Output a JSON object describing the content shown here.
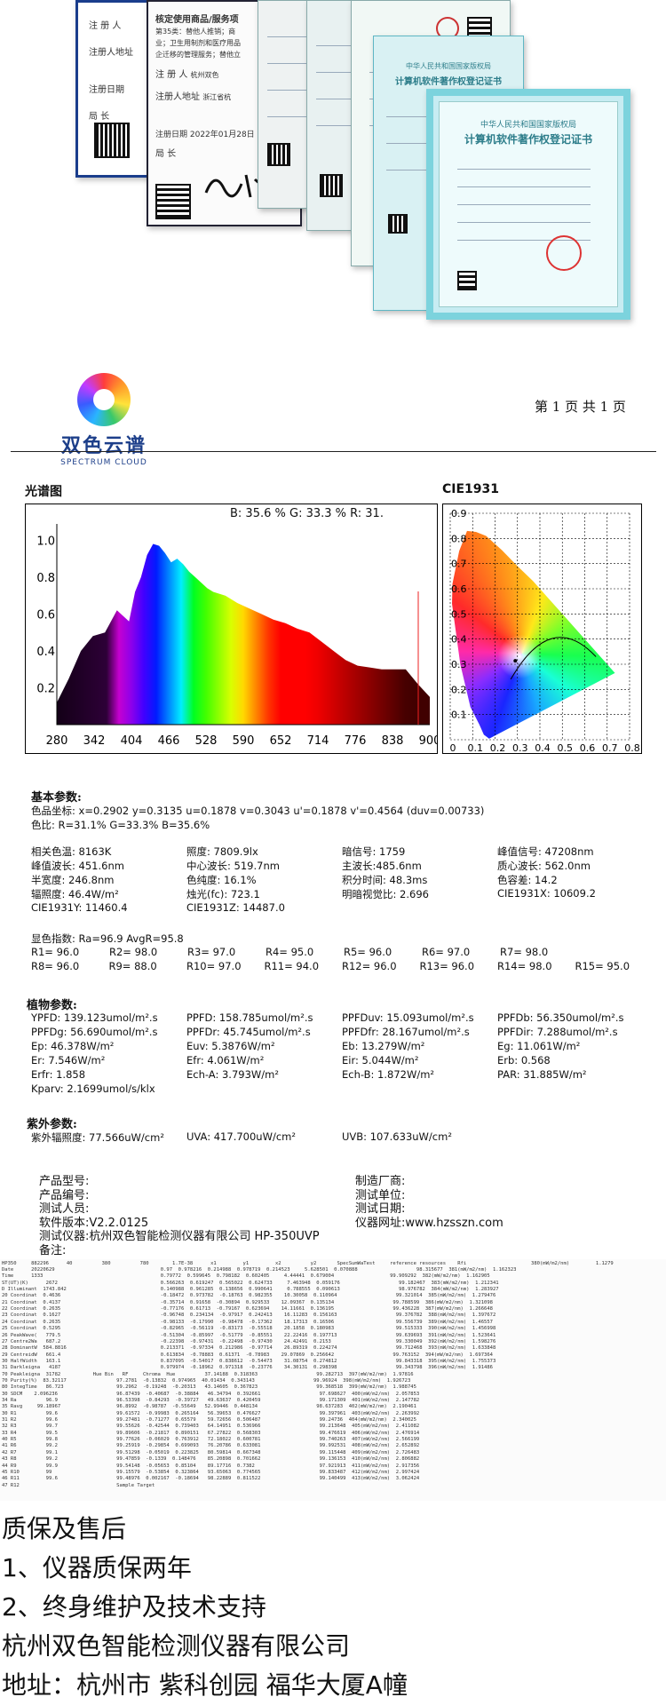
{
  "certificates": {
    "c1_lines": [
      "注 册 人",
      "注册人地址",
      "注册日期",
      "局 长"
    ],
    "c2_lines": [
      "核定使用商品/服务项",
      "第35类：替他人推销；商",
      "业；卫生用制剂和医疗用品",
      "企迁移的管理服务；替他立",
      "注 册 人",
      "注册人地址",
      "注册日期 2022年01月28日",
      "局 长"
    ],
    "c2_addr": "杭州双色",
    "c2_addr2": "浙江省杭",
    "c6_title1": "中华人民共和国国家版权局",
    "c6_title2": "计算机软件著作权登记证书",
    "c7_title1": "中华人民共和国国家版权局",
    "c7_title2": "计算机软件著作权登记证书"
  },
  "report": {
    "brand_name": "双色云谱",
    "brand_en": "SPECTRUM CLOUD",
    "page_label": "第 1 页 共 1 页",
    "spectrum_title": "光谱图",
    "spectrum_ratio": "B: 35.6 %  G: 33.3 %  R: 31.",
    "cie_title": "CIE1931",
    "basic_head": "基本参数:",
    "basic_line1": "色品坐标: x=0.2902  y=0.3135  u=0.1878  v=0.3043  u'=0.1878  v'=0.4564  (duv=0.00733)",
    "basic_line2": "色比: R=31.1%   G=33.3%   B=35.6%",
    "params": [
      [
        "相关色温: 8163K",
        "照度: 7809.9lx",
        "暗信号: 1759",
        "峰值信号: 47208nm"
      ],
      [
        "峰值波长: 451.6nm",
        "中心波长: 519.7nm",
        "主波长:485.6nm",
        "质心波长: 562.0nm"
      ],
      [
        "半宽度: 246.8nm",
        "色纯度: 16.1%",
        "积分时间: 48.3ms",
        "色容差: 14.2"
      ],
      [
        "辐照度: 46.4W/m²",
        "烛光(fc): 723.1",
        "明暗视觉比: 2.696",
        "CIE1931X: 10609.2"
      ],
      [
        "CIE1931Y: 11460.4",
        "CIE1931Z: 14487.0",
        "",
        ""
      ]
    ],
    "ri_line": "显色指数: Ra=96.9     AvgR=95.8",
    "ri_rows": [
      [
        "R1= 96.0",
        "R2= 98.0",
        "R3= 97.0",
        "R4= 95.0",
        "R5= 96.0",
        "R6= 97.0",
        "R7= 98.0"
      ],
      [
        "R8= 96.0",
        "R9= 88.0",
        "R10= 97.0",
        "R11= 94.0",
        "R12= 96.0",
        "R13= 96.0",
        "R14= 98.0",
        "R15= 95.0"
      ]
    ],
    "plant_head": "植物参数:",
    "plant_rows": [
      [
        "YPFD: 139.123umol/m².s",
        "PPFD: 158.785umol/m².s",
        "PPFDuv: 15.093umol/m².s",
        "PPFDb: 56.350umol/m².s"
      ],
      [
        "PPFDg: 56.690umol/m².s",
        "PPFDr: 45.745umol/m².s",
        "PPFDfr: 28.167umol/m².s",
        "PPFDir: 7.288umol/m².s"
      ],
      [
        "Ep: 46.378W/m²",
        "Euv: 5.3876W/m²",
        "Eb: 13.279W/m²",
        "Eg: 11.061W/m²"
      ],
      [
        "Er: 7.546W/m²",
        "Efr: 4.061W/m²",
        "Eir: 5.044W/m²",
        "Erb: 0.568"
      ],
      [
        "Erfr: 1.858",
        "Ech-A: 3.793W/m²",
        "Ech-B: 1.872W/m²",
        "PAR: 31.885W/m²"
      ],
      [
        "Kparv: 2.1699umol/s/klx",
        "",
        "",
        ""
      ]
    ],
    "uv_head": "紫外参数:",
    "uv_vals": [
      "紫外辐照度: 77.566uW/cm²",
      "UVA: 417.700uW/cm²",
      "UVB: 107.633uW/cm²"
    ],
    "info_left": [
      "产品型号:",
      "产品编号:",
      "测试人员:",
      "软件版本:V2.2.0125",
      "测试仪器:杭州双色智能检测仪器有限公司 HP-350UVP",
      "备注:"
    ],
    "info_right": [
      "制造厂商:",
      "测试单位:",
      "测试日期:",
      "仪器网址:www.hzsszn.com"
    ]
  },
  "chart_data": [
    {
      "type": "area",
      "title": "光谱图",
      "x_ticks": [
        280,
        342,
        404,
        466,
        528,
        590,
        652,
        714,
        776,
        838,
        900
      ],
      "y_ticks": [
        0.2,
        0.4,
        0.6,
        0.8,
        1.0
      ],
      "y_tick_labels": [
        "0.2",
        "0.4",
        "0.6",
        "0.8",
        "1.0"
      ],
      "xlim": [
        280,
        900
      ],
      "ylim": [
        0,
        1.05
      ],
      "x": [
        280,
        300,
        320,
        340,
        360,
        380,
        400,
        410,
        420,
        430,
        440,
        450,
        460,
        470,
        480,
        490,
        500,
        510,
        520,
        530,
        540,
        550,
        560,
        580,
        600,
        620,
        640,
        660,
        680,
        700,
        720,
        740,
        760,
        780,
        800,
        820,
        840,
        860,
        880,
        900
      ],
      "values": [
        0.12,
        0.25,
        0.4,
        0.48,
        0.5,
        0.62,
        0.56,
        0.72,
        0.8,
        0.92,
        0.98,
        0.97,
        0.93,
        0.88,
        0.9,
        0.87,
        0.83,
        0.8,
        0.77,
        0.74,
        0.72,
        0.71,
        0.7,
        0.66,
        0.63,
        0.6,
        0.57,
        0.55,
        0.52,
        0.5,
        0.45,
        0.4,
        0.35,
        0.32,
        0.31,
        0.3,
        0.3,
        0.3,
        0.22,
        0.15
      ],
      "grid": false
    },
    {
      "type": "scatter",
      "title": "CIE1931",
      "x_tick_labels": [
        "0",
        "0.1",
        "0.2",
        "0.3",
        "0.4",
        "0.5",
        "0.6",
        "0.7",
        "0.8"
      ],
      "y_tick_labels": [
        "0.1",
        "0.2",
        "0.3",
        "0.4",
        "0.5",
        "0.6",
        "0.7",
        "0.8",
        "0.9"
      ],
      "xlim": [
        0,
        0.8
      ],
      "ylim": [
        0,
        0.9
      ],
      "point": {
        "x": 0.2902,
        "y": 0.3135
      },
      "grid": true
    }
  ],
  "datalog": {
    "header": "HP350     882296      40          380          780        1.7E-38      x1         y1         x2          y2       SpecSumWaTest     reference resources    Rfi                      380(mW/m2/nm)         1.1279",
    "rows": [
      "Date      20220629                                    0.97  0.978216  0.214988  0.978719  0.214523     5.628501  0.070888                    98.315677  381(mW/m2/nm)  1.162323",
      "Time      1333                                        0.79772  0.599645  0.798182  0.602405     4.44441  0.679004                   99.909292  382(mW/m2/nm)  1.162905",
      "ST(UT)(K)      2672                                   0.566263  0.619247  0.565022  0.624733     7.463948  0.059176                    99.182467  383(mW/m2/nm)  1.212341",
      "D Illuminant  1743.842                                0.140988  0.961285  0.138656  0.990641     0.788555  0.090613                    98.976782  384(mW/m2/nm)  1.283927",
      "20 Coordinat  0.4636                                  -0.18472  0.973782  -0.18763  0.982355    10.30058  0.110964                    99.321014  385(mW/m2/nm)  1.279476",
      "21 Coordinat  0.4137                                  -0.35714  0.91658  -0.30894  0.929533    12.09367  0.135134                    99.788599  386(mW/m2/nm)  1.321098",
      "22 Coordinat  0.2635                                  -0.77176  0.61713  -0.79167  0.623694    14.11661  0.136195                    99.436228  387(mW/m2/nm)  1.266648",
      "23 Coordinat  0.1627                                  -0.96748  0.234134  -0.97917  0.242413    16.11283  0.156163                    99.376782  388(mW/m2/nm)  1.397672",
      "24 Coordinat  0.2635                                  -0.98133  -0.17990  -0.98478  -0.17362    18.17313  0.16506                     99.556739  389(mW/m2/nm)  1.46557",
      "25 Coordinat  0.5295                                  -0.82965  -0.56119  -0.83173  -0.55518    20.1858  0.180983                     99.515333  390(mW/m2/nm)  1.456998",
      "26 PeakWave(   779.5                                  -0.51304  -0.85997  -0.51779  -0.85551    22.22416  0.197713                    99.639693  391(mW/m2/nm)  1.523641",
      "27 Centre2Wa   687.2                                  -0.22398  -0.97431  -0.22498  -0.97430    24.42491  0.2153                      99.330049  392(mW/m2/nm)  1.598276",
      "28 DominantW  584.8816                                0.213371  -0.97334  0.212986  -0.97714    26.89319  0.224274                    99.712468  393(mW/m2/nm)  1.633848",
      "29 CentreidW   661.4                                  0.613834  -0.78883  0.61371  -0.78983    29.07869  0.256642                    99.763152  394(mW/m2/nm)  1.697364",
      "30 HalfWidth   163.1                                  0.837095  -0.54017  0.838612  -0.54473    31.08754  0.274812                    99.843318  395(mW/m2/nm)  1.755373",
      "31 Darkleigna   4187                                  0.979974  -0.18962  0.971318  -0.23776    34.30131  0.298398                    99.343798  396(mW/m2/nm)  1.91486",
      "70 Peakleigna  31782           Hue Bin   RF     Chroma  Hue          37.14188  0.318363                    99.282713  397(mW/m2/nm)  1.97816",
      "70 Purity(%)  83.32117                 97.2781  -0.13832  0.974965  40.01434  0.343143                    99.96924  398(mW/m2/nm)  1.926723",
      "80 IntegTime   86.723                  99.2962  -0.19248  -0.20313   43.14605  0.367823                    99.368518  399(mW/m2/nm)  1.988745",
      "30 SDCM    2.096236                    96.87439  -0.40687  -0.38884   46.34794  0.392661                    97.698627  400(mW/m2/nm)  2.057853",
      "34 Ra          96.9                    96.53398  -0.84293  -0.39727   49.63637  0.420459                    99.171309  401(mW/m2/nm)  2.147782",
      "35 Ravg     99.18967                   96.8992  -0.98787  -0.55649   52.99446  0.448134                    98.637283  402(mW/m2/nm)  2.190461",
      "30 R1          99.6                    99.61572  -0.99983  0.265164   56.39653  0.476627                    99.397961  403(mW/m2/nm)  2.263992",
      "31 R2          99.6                    99.27481  -0.71277  0.65579    59.72656  0.506487                    99.24736  404(mW/m2/nm)  2.340025",
      "32 R3          99.7                    99.55626  -0.42544  0.739403   64.14951  0.536966                    99.213648  405(mW/m2/nm)  2.411082",
      "33 R4          99.5                    99.89606  -0.21817  0.890151   67.27822  0.568303                    99.476619  406(mW/m2/nm)  2.476914",
      "40 R5          99.8                    99.77626  -0.06029  0.763912   72.18022  0.600781                    99.740263  407(mW/m2/nm)  2.566199",
      "41 R6          99.2                    99.25919  -0.29854  0.699093   76.20786  0.633081                    99.992531  408(mW/m2/nm)  2.652892",
      "42 R7          99.1                    99.51298  -0.05019  0.223825   80.59814  0.667348                    99.115448  409(mW/m2/nm)  2.726483",
      "43 R8          99.2                    99.47859  -0.1339  0.148476    85.20898  0.701662                    99.136153  410(mW/m2/nm)  2.806882",
      "44 R9          99.9                    99.54148  -0.05653  0.85104    89.17716  0.7382                      97.921913  411(mW/m2/nm)  2.917356",
      "45 R10         99                      99.15579  -0.53854  0.323864   93.65063  0.774565                    99.833487  412(mW/m2/nm)  2.997424",
      "46 R11         99.6                    99.48976  0.002167  -0.18694   98.22889  0.811522                    99.140499  413(mW/m2/nm)  3.062424",
      "47 R12                                 Sample Target"
    ]
  },
  "footer_lines": [
    "质保及售后",
    "1、仪器质保两年",
    "2、终身维护及技术支持",
    "杭州双色智能检测仪器有限公司",
    "地址：杭州市 紫科创园 福华大厦A幢"
  ],
  "colors": {
    "brand": "#1d3f8a",
    "cert_blue": "#1a3d8c",
    "cert_cyan": "#7cd3dd"
  }
}
